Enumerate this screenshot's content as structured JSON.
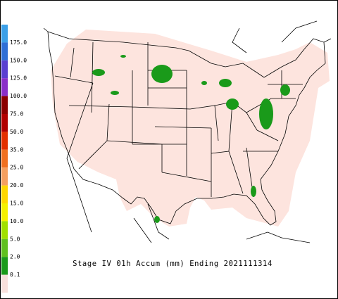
{
  "legend": {
    "labels": [
      "175.0",
      "150.0",
      "125.0",
      "100.0",
      "75.0",
      "50.0",
      "35.0",
      "25.0",
      "20.0",
      "15.0",
      "10.0",
      "5.0",
      "2.0",
      "0.1"
    ]
  },
  "caption": "Stage IV 01h Accum (mm) Ending 2021111314"
}
